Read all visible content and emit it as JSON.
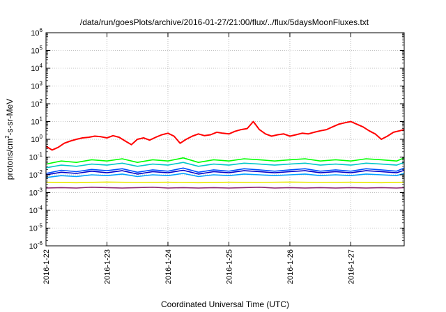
{
  "chart_data": {
    "type": "line",
    "title": "/data/run/goesPlots/archive/2016-01-27/21:00/flux/../flux/5daysMoonFluxes.txt",
    "xlabel": "Coordinated Universal Time (UTC)",
    "ylabel": "protons/cm²-s-sr-MeV",
    "yscale": "log",
    "ylim": [
      1e-06,
      1000000.0
    ],
    "xlim": [
      "2016-01-22T00:00",
      "2016-01-27T21:00"
    ],
    "x_ticks": [
      "2016-1-22",
      "2016-1-23",
      "2016-1-24",
      "2016-1-25",
      "2016-1-26",
      "2016-1-27"
    ],
    "y_tick_exponents": [
      -6,
      -5,
      -4,
      -3,
      -2,
      -1,
      0,
      1,
      2,
      3,
      4,
      5,
      6
    ],
    "grid": true,
    "legend": "none",
    "series": [
      {
        "color": "#ff0000",
        "x": [
          0.0,
          0.1,
          0.2,
          0.3,
          0.4,
          0.5,
          0.6,
          0.7,
          0.8,
          0.9,
          1.0,
          1.1,
          1.2,
          1.3,
          1.4,
          1.5,
          1.6,
          1.7,
          1.8,
          1.9,
          2.0,
          2.1,
          2.2,
          2.3,
          2.4,
          2.5,
          2.6,
          2.7,
          2.8,
          2.9,
          3.0,
          3.1,
          3.2,
          3.3,
          3.4,
          3.5,
          3.6,
          3.7,
          3.8,
          3.9,
          4.0,
          4.1,
          4.2,
          4.3,
          4.4,
          4.5,
          4.6,
          4.7,
          4.8,
          4.9,
          5.0,
          5.1,
          5.2,
          5.3,
          5.4,
          5.5,
          5.6,
          5.7,
          5.8,
          5.875
        ],
        "values": [
          0.4,
          0.25,
          0.35,
          0.6,
          0.8,
          1.0,
          1.2,
          1.3,
          1.5,
          1.4,
          1.2,
          1.6,
          1.3,
          0.8,
          0.5,
          1.0,
          1.2,
          0.9,
          1.3,
          1.8,
          2.2,
          1.5,
          0.6,
          1.0,
          1.5,
          2.0,
          1.6,
          1.8,
          2.5,
          2.2,
          2.0,
          2.8,
          3.5,
          4.0,
          10.0,
          3.5,
          2.0,
          1.5,
          1.8,
          2.0,
          1.5,
          1.8,
          2.2,
          2.0,
          2.5,
          3.0,
          3.5,
          5.0,
          7.0,
          8.5,
          10.0,
          7.0,
          5.0,
          3.0,
          2.0,
          1.0,
          1.5,
          2.5,
          3.0,
          3.5
        ]
      },
      {
        "color": "#00ff00",
        "x": [
          0.0,
          0.25,
          0.5,
          0.75,
          1.0,
          1.25,
          1.5,
          1.75,
          2.0,
          2.25,
          2.5,
          2.75,
          3.0,
          3.25,
          3.5,
          3.75,
          4.0,
          4.25,
          4.5,
          4.75,
          5.0,
          5.25,
          5.5,
          5.75,
          5.875
        ],
        "values": [
          0.04,
          0.06,
          0.05,
          0.07,
          0.06,
          0.08,
          0.05,
          0.07,
          0.06,
          0.09,
          0.05,
          0.07,
          0.06,
          0.08,
          0.07,
          0.06,
          0.07,
          0.08,
          0.06,
          0.07,
          0.06,
          0.08,
          0.07,
          0.06,
          0.09
        ]
      },
      {
        "color": "#00c8c8",
        "x": [
          0.0,
          0.25,
          0.5,
          0.75,
          1.0,
          1.25,
          1.5,
          1.75,
          2.0,
          2.25,
          2.5,
          2.75,
          3.0,
          3.25,
          3.5,
          3.75,
          4.0,
          4.25,
          4.5,
          4.75,
          5.0,
          5.25,
          5.5,
          5.75,
          5.875
        ],
        "values": [
          0.025,
          0.035,
          0.03,
          0.04,
          0.035,
          0.045,
          0.03,
          0.04,
          0.035,
          0.05,
          0.03,
          0.04,
          0.035,
          0.045,
          0.04,
          0.035,
          0.04,
          0.045,
          0.035,
          0.04,
          0.035,
          0.045,
          0.04,
          0.035,
          0.05
        ]
      },
      {
        "color": "#0050ff",
        "x": [
          0.0,
          0.25,
          0.5,
          0.75,
          1.0,
          1.25,
          1.5,
          1.75,
          2.0,
          2.25,
          2.5,
          2.75,
          3.0,
          3.25,
          3.5,
          3.75,
          4.0,
          4.25,
          4.5,
          4.75,
          5.0,
          5.25,
          5.5,
          5.75,
          5.875
        ],
        "values": [
          0.012,
          0.018,
          0.015,
          0.02,
          0.017,
          0.022,
          0.014,
          0.019,
          0.016,
          0.024,
          0.014,
          0.019,
          0.016,
          0.022,
          0.019,
          0.016,
          0.019,
          0.022,
          0.016,
          0.019,
          0.016,
          0.022,
          0.019,
          0.016,
          0.024
        ]
      },
      {
        "color": "#0000c8",
        "x": [
          0.0,
          0.25,
          0.5,
          0.75,
          1.0,
          1.25,
          1.5,
          1.75,
          2.0,
          2.25,
          2.5,
          2.75,
          3.0,
          3.25,
          3.5,
          3.75,
          4.0,
          4.25,
          4.5,
          4.75,
          5.0,
          5.25,
          5.5,
          5.75,
          5.875
        ],
        "values": [
          0.01,
          0.014,
          0.012,
          0.016,
          0.013,
          0.017,
          0.011,
          0.015,
          0.013,
          0.018,
          0.011,
          0.015,
          0.013,
          0.017,
          0.015,
          0.013,
          0.015,
          0.017,
          0.013,
          0.015,
          0.013,
          0.017,
          0.015,
          0.013,
          0.018
        ]
      },
      {
        "color": "#00a0ff",
        "x": [
          0.0,
          0.25,
          0.5,
          0.75,
          1.0,
          1.25,
          1.5,
          1.75,
          2.0,
          2.25,
          2.5,
          2.75,
          3.0,
          3.25,
          3.5,
          3.75,
          4.0,
          4.25,
          4.5,
          4.75,
          5.0,
          5.25,
          5.5,
          5.75,
          5.875
        ],
        "values": [
          0.007,
          0.009,
          0.008,
          0.01,
          0.009,
          0.011,
          0.008,
          0.01,
          0.009,
          0.012,
          0.008,
          0.01,
          0.009,
          0.011,
          0.01,
          0.009,
          0.01,
          0.011,
          0.009,
          0.01,
          0.009,
          0.011,
          0.01,
          0.009,
          0.012
        ]
      },
      {
        "color": "#e8e800",
        "x": [
          0.0,
          0.5,
          1.0,
          1.5,
          2.0,
          2.5,
          3.0,
          3.5,
          4.0,
          4.5,
          5.0,
          5.5,
          5.875
        ],
        "values": [
          0.0038,
          0.0036,
          0.0039,
          0.0037,
          0.0038,
          0.0036,
          0.0038,
          0.0037,
          0.0039,
          0.0037,
          0.0038,
          0.0036,
          0.0038
        ]
      },
      {
        "color": "#8b2570",
        "x": [
          0.0,
          0.25,
          0.5,
          0.75,
          1.0,
          1.25,
          1.5,
          1.75,
          2.0,
          2.25,
          2.5,
          2.75,
          3.0,
          3.25,
          3.5,
          3.75,
          4.0,
          4.25,
          4.5,
          4.75,
          5.0,
          5.25,
          5.5,
          5.75,
          5.875
        ],
        "values": [
          0.0018,
          0.0019,
          0.0018,
          0.002,
          0.0019,
          0.0018,
          0.0019,
          0.002,
          0.0018,
          0.0019,
          0.0018,
          0.0019,
          0.0018,
          0.0019,
          0.002,
          0.0018,
          0.0019,
          0.0018,
          0.0019,
          0.0018,
          0.0019,
          0.0018,
          0.0019,
          0.0018,
          0.0019
        ]
      }
    ]
  }
}
